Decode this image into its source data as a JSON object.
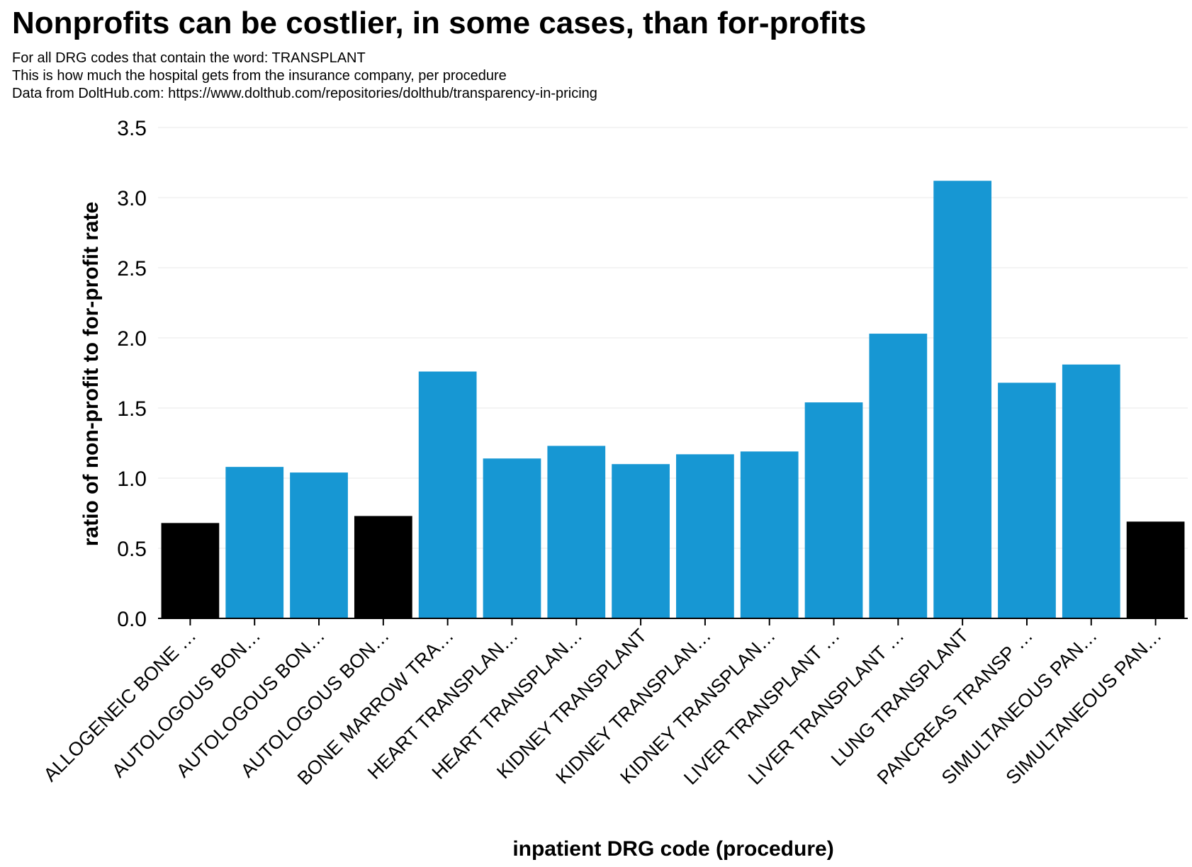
{
  "chart_data": {
    "type": "bar",
    "title": "Nonprofits can be costlier, in some cases, than for-profits",
    "subtitle_lines": [
      "For all DRG codes that contain the word: TRANSPLANT",
      "This is how much the hospital gets from the insurance company, per procedure",
      "Data from DoltHub.com: https://www.dolthub.com/repositories/dolthub/transparency-in-pricing"
    ],
    "xlabel": "inpatient DRG code (procedure)",
    "ylabel": "ratio of non-profit to for-profit rate",
    "ylim": [
      0,
      3.5
    ],
    "yticks": [
      0.0,
      0.5,
      1.0,
      1.5,
      2.0,
      2.5,
      3.0,
      3.5
    ],
    "ytick_labels": [
      "0.0",
      "0.5",
      "1.0",
      "1.5",
      "2.0",
      "2.5",
      "3.0",
      "3.5"
    ],
    "grid": true,
    "categories": [
      "ALLOGENEIC BONE …",
      "AUTOLOGOUS BON…",
      "AUTOLOGOUS BON…",
      "AUTOLOGOUS BON…",
      "BONE MARROW TRA…",
      "HEART TRANSPLAN…",
      "HEART TRANSPLAN…",
      "KIDNEY TRANSPLANT",
      "KIDNEY TRANSPLAN…",
      "KIDNEY TRANSPLAN…",
      "LIVER TRANSPLANT …",
      "LIVER TRANSPLANT …",
      "LUNG TRANSPLANT",
      "PANCREAS TRANSP …",
      "SIMULTANEOUS PAN…",
      "SIMULTANEOUS PAN…"
    ],
    "values": [
      0.68,
      1.08,
      1.04,
      0.73,
      1.76,
      1.14,
      1.23,
      1.1,
      1.17,
      1.19,
      1.54,
      2.03,
      3.12,
      1.68,
      1.81,
      0.69
    ],
    "colors": {
      "above_one": "#1797d3",
      "below_one": "#000000",
      "grid": "#e8e8e8",
      "axis": "#000000"
    }
  }
}
